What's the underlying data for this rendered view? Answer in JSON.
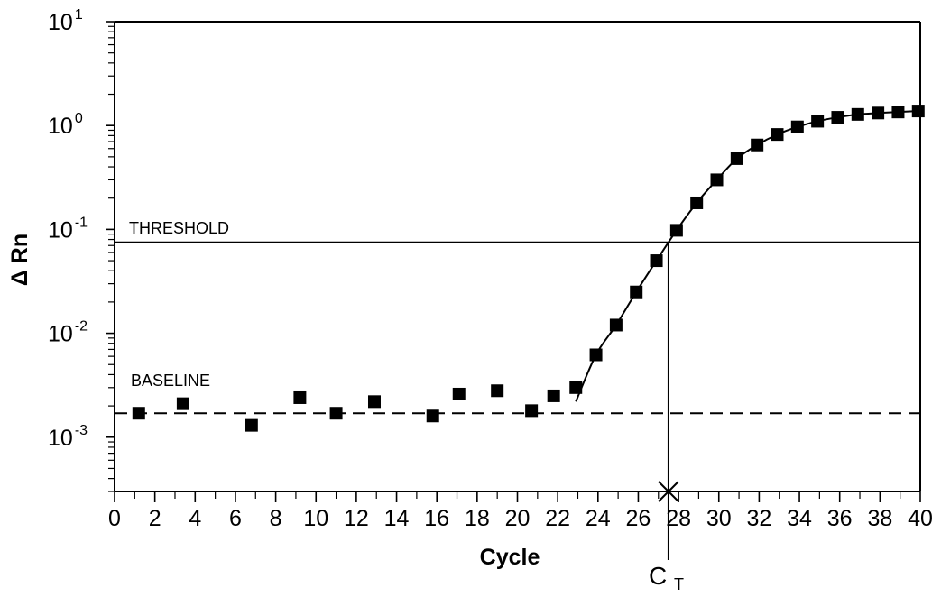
{
  "chart_data": {
    "type": "scatter",
    "title": "",
    "xlabel": "Cycle",
    "ylabel": "Δ Rn",
    "x_ticks": [
      0,
      2,
      4,
      6,
      8,
      10,
      12,
      14,
      16,
      18,
      20,
      22,
      24,
      26,
      28,
      30,
      32,
      34,
      36,
      38,
      40
    ],
    "xlim": [
      0,
      40
    ],
    "ylim": [
      0.0003,
      10
    ],
    "yscale": "log",
    "y_ticks": [
      {
        "value": 0.001,
        "base": "10",
        "exp": "-3"
      },
      {
        "value": 0.01,
        "base": "10",
        "exp": "-2"
      },
      {
        "value": 0.1,
        "base": "10",
        "exp": "-1"
      },
      {
        "value": 1,
        "base": "10",
        "exp": "0"
      },
      {
        "value": 10,
        "base": "10",
        "exp": "1"
      }
    ],
    "grid": false,
    "series": [
      {
        "values": [
          {
            "x": 1.2,
            "y": 0.0017
          },
          {
            "x": 3.4,
            "y": 0.0021
          },
          {
            "x": 6.8,
            "y": 0.0013
          },
          {
            "x": 9.2,
            "y": 0.0024
          },
          {
            "x": 11.0,
            "y": 0.0017
          },
          {
            "x": 12.9,
            "y": 0.0022
          },
          {
            "x": 15.8,
            "y": 0.0016
          },
          {
            "x": 17.1,
            "y": 0.0026
          },
          {
            "x": 19.0,
            "y": 0.0028
          },
          {
            "x": 20.7,
            "y": 0.0018
          },
          {
            "x": 21.8,
            "y": 0.0025
          },
          {
            "x": 22.9,
            "y": 0.003
          },
          {
            "x": 23.9,
            "y": 0.0062
          },
          {
            "x": 24.9,
            "y": 0.012
          },
          {
            "x": 25.9,
            "y": 0.025
          },
          {
            "x": 26.9,
            "y": 0.05
          },
          {
            "x": 27.9,
            "y": 0.098
          },
          {
            "x": 28.9,
            "y": 0.18
          },
          {
            "x": 29.9,
            "y": 0.3
          },
          {
            "x": 30.9,
            "y": 0.48
          },
          {
            "x": 31.9,
            "y": 0.65
          },
          {
            "x": 32.9,
            "y": 0.82
          },
          {
            "x": 33.9,
            "y": 0.97
          },
          {
            "x": 34.9,
            "y": 1.1
          },
          {
            "x": 35.9,
            "y": 1.2
          },
          {
            "x": 36.9,
            "y": 1.28
          },
          {
            "x": 37.9,
            "y": 1.32
          },
          {
            "x": 38.9,
            "y": 1.35
          },
          {
            "x": 39.9,
            "y": 1.38
          }
        ]
      }
    ],
    "fit_curve": {
      "x": [
        22.9,
        23.9,
        24.9,
        25.9,
        26.9,
        27.9,
        28.9,
        29.9,
        30.9,
        31.9,
        32.9,
        33.9,
        34.9,
        35.9,
        36.9,
        37.9,
        38.9,
        39.9
      ],
      "y": [
        0.0022,
        0.0062,
        0.012,
        0.025,
        0.05,
        0.098,
        0.18,
        0.3,
        0.48,
        0.65,
        0.82,
        0.97,
        1.1,
        1.2,
        1.28,
        1.32,
        1.35,
        1.38
      ]
    },
    "annotations": {
      "threshold": {
        "label": "THRESHOLD",
        "y": 0.075
      },
      "baseline": {
        "label": "BASELINE",
        "y": 0.0017
      },
      "ct": {
        "label_main": "C",
        "label_sub": "T",
        "x": 27.5
      }
    }
  }
}
